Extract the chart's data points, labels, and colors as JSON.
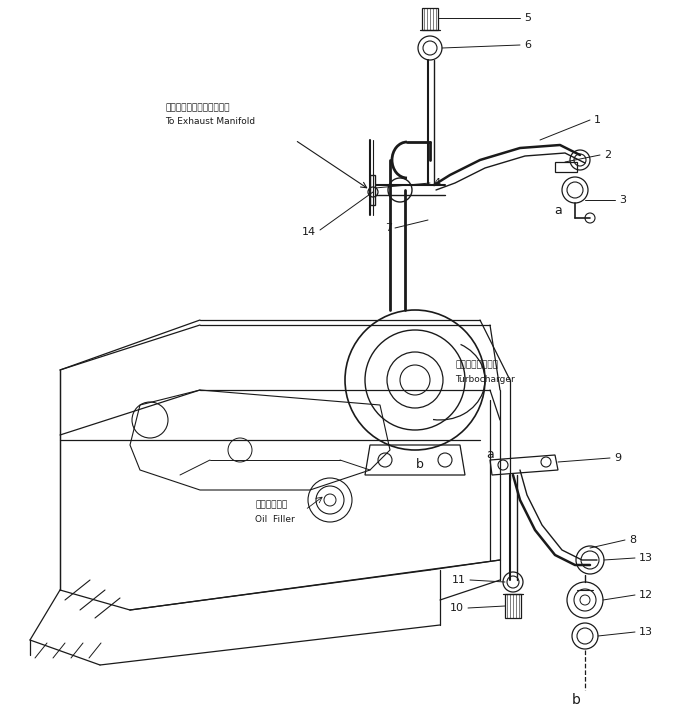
{
  "bg_color": "#ffffff",
  "lc": "#1a1a1a",
  "fig_w": 6.77,
  "fig_h": 7.15,
  "dpi": 100,
  "text_exhaust_jp": "エキゾーストマニホールへ",
  "text_exhaust_en": "To Exhaust Manifold",
  "text_turbo_jp": "ターボチャージャ",
  "text_turbo_en": "Turbocharger",
  "text_oil_jp": "オイルフィラ",
  "text_oil_en": "Oil  Filler"
}
